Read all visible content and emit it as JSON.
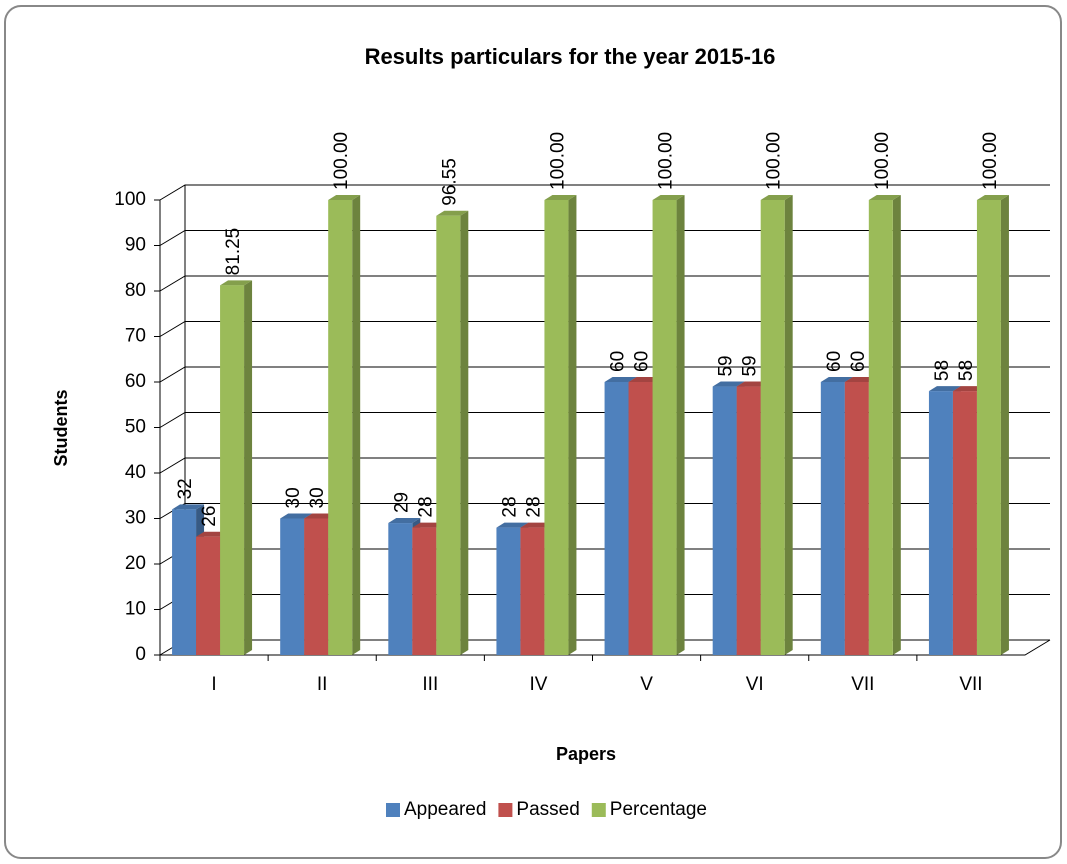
{
  "chart_data": {
    "type": "bar3d",
    "title": "Results particulars for the year 2015-16",
    "xlabel": "Papers",
    "ylabel": "Students",
    "categories": [
      "I",
      "II",
      "III",
      "IV",
      "V",
      "VI",
      "VII",
      "VII"
    ],
    "series": [
      {
        "name": "Appeared",
        "color": "#4f81bd",
        "values": [
          32,
          30,
          29,
          28,
          60,
          59,
          60,
          58
        ]
      },
      {
        "name": "Passed",
        "color": "#c0504d",
        "values": [
          26,
          30,
          28,
          28,
          60,
          59,
          60,
          58
        ]
      },
      {
        "name": "Percentage",
        "color": "#9bbb59",
        "values": [
          81.25,
          100,
          96.55,
          100,
          100,
          100,
          100,
          100
        ],
        "value_labels": [
          "81.25",
          "100.00",
          "96.55",
          "100.00",
          "100.00",
          "100.00",
          "100.00",
          "100.00"
        ]
      }
    ],
    "ylim": [
      0,
      100
    ],
    "yticks": [
      0,
      10,
      20,
      30,
      40,
      50,
      60,
      70,
      80,
      90,
      100
    ],
    "grid": true,
    "legend": "bottom"
  }
}
